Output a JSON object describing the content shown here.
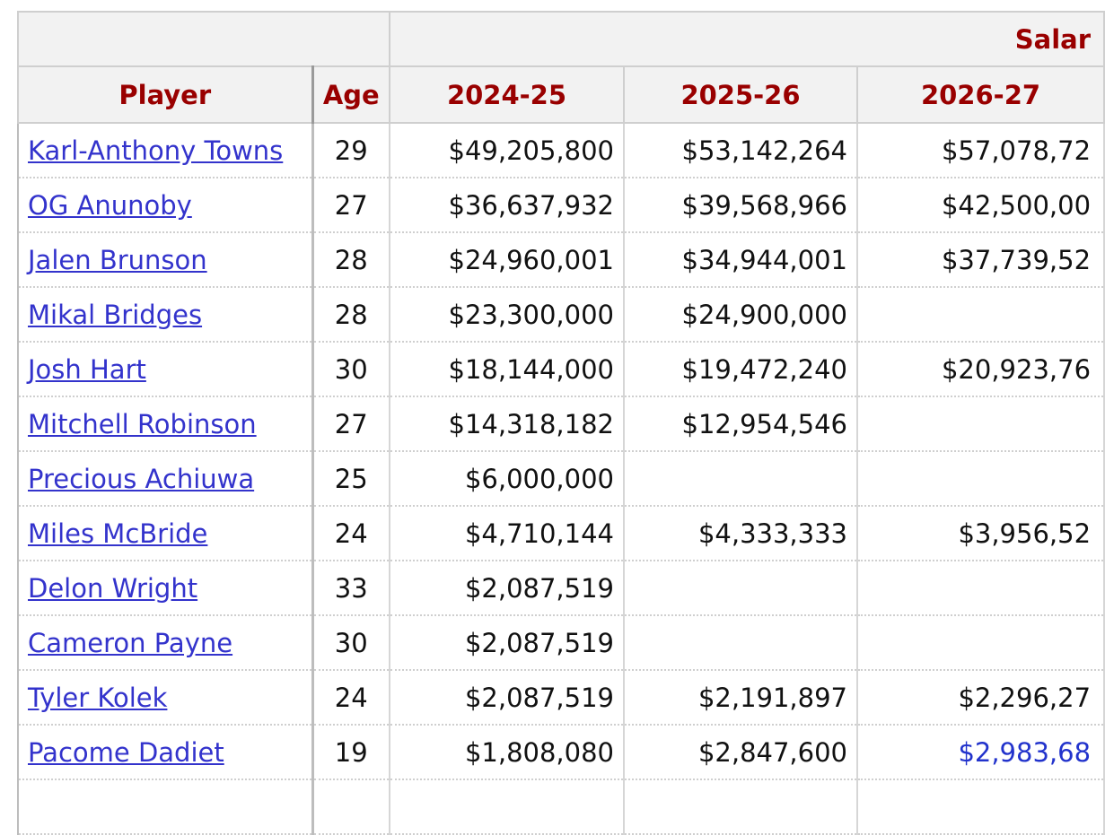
{
  "table": {
    "group_header": "Salar",
    "columns": [
      "Player",
      "Age",
      "2024-25",
      "2025-26",
      "2026-27"
    ],
    "rows": [
      [
        "Karl-Anthony Towns",
        29,
        "$49,205,800",
        "$53,142,264",
        "$57,078,72"
      ],
      [
        "OG Anunoby",
        27,
        "$36,637,932",
        "$39,568,966",
        "$42,500,00"
      ],
      [
        "Jalen Brunson",
        28,
        "$24,960,001",
        "$34,944,001",
        "$37,739,52"
      ],
      [
        "Mikal Bridges",
        28,
        "$23,300,000",
        "$24,900,000",
        null
      ],
      [
        "Josh Hart",
        30,
        "$18,144,000",
        "$19,472,240",
        "$20,923,76"
      ],
      [
        "Mitchell Robinson",
        27,
        "$14,318,182",
        "$12,954,546",
        null
      ],
      [
        "Precious Achiuwa",
        25,
        "$6,000,000",
        null,
        null
      ],
      [
        "Miles McBride",
        24,
        "$4,710,144",
        "$4,333,333",
        "$3,956,52"
      ],
      [
        "Delon Wright",
        33,
        "$2,087,519",
        null,
        null
      ],
      [
        "Cameron Payne",
        30,
        "$2,087,519",
        null,
        null
      ],
      [
        "Tyler Kolek",
        24,
        "$2,087,519",
        "$2,191,897",
        "$2,296,27"
      ],
      [
        "Pacome Dadiet",
        19,
        "$1,808,080",
        "$2,847,600",
        "$2,983,68"
      ]
    ]
  }
}
